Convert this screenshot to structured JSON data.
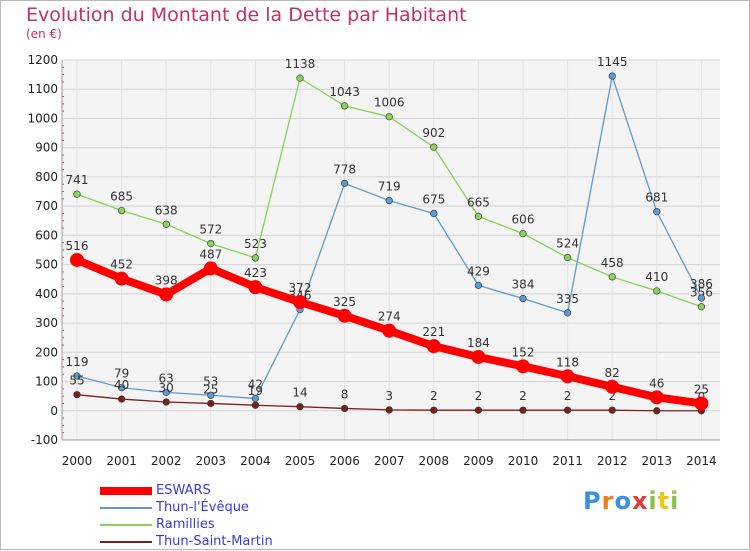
{
  "title": "Evolution du Montant de la Dette par Habitant",
  "unit": "(en €)",
  "brand": "Proxiti",
  "chart_data": {
    "type": "line",
    "categories": [
      "2000",
      "2001",
      "2002",
      "2003",
      "2004",
      "2005",
      "2006",
      "2007",
      "2008",
      "2009",
      "2010",
      "2011",
      "2012",
      "2013",
      "2014"
    ],
    "ylim": [
      -100,
      1200
    ],
    "yticks": [
      -100,
      0,
      100,
      200,
      300,
      400,
      500,
      600,
      700,
      800,
      900,
      1000,
      1100,
      1200
    ],
    "grid": true,
    "legend_position": "bottom-left",
    "series": [
      {
        "name": "Ramillies",
        "color": "#88d15a",
        "values": [
          741,
          685,
          638,
          572,
          523,
          1138,
          1043,
          1006,
          902,
          665,
          606,
          524,
          458,
          410,
          356
        ]
      },
      {
        "name": "Thun-l'Évêque",
        "color": "#5b9bd5",
        "values": [
          119,
          79,
          63,
          53,
          42,
          346,
          778,
          719,
          675,
          429,
          384,
          335,
          1145,
          681,
          386
        ]
      },
      {
        "name": "Thun-Saint-Martin",
        "color": "#7b2020",
        "values": [
          55,
          40,
          30,
          25,
          19,
          14,
          8,
          3,
          2,
          2,
          2,
          2,
          2,
          0,
          0
        ]
      },
      {
        "name": "ESWARS",
        "color": "#ff0000",
        "values": [
          516,
          452,
          398,
          487,
          423,
          372,
          325,
          274,
          221,
          184,
          152,
          118,
          82,
          46,
          25
        ]
      }
    ],
    "legend_order": [
      "ESWARS",
      "Thun-l'Évêque",
      "Ramillies",
      "Thun-Saint-Martin"
    ]
  }
}
